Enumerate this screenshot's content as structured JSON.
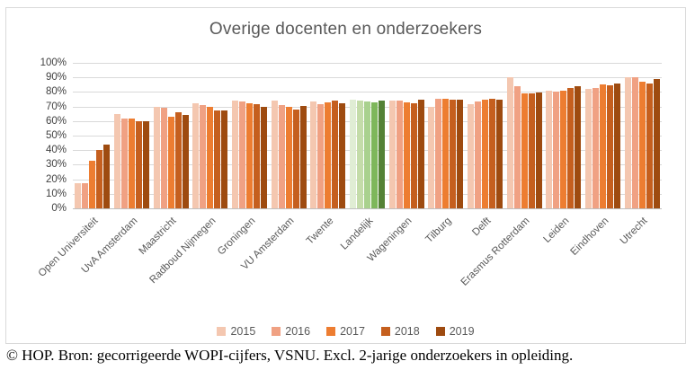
{
  "footer": {
    "text": "© HOP. Bron: gecorrigeerde WOPI-cijfers, VSNU. Excl. 2-jarige onderzoekers in opleiding."
  },
  "style": {
    "frame_border_color": "#D9D9D9",
    "title_color": "#595959",
    "gridline_color": "#D9D9D9",
    "axis_line_color": "#BFBFBF",
    "ytick_color": "#404040",
    "xtick_color": "#595959"
  },
  "chart_data": {
    "type": "bar",
    "title": "Overige docenten en onderzoekers",
    "xlabel": "",
    "ylabel": "",
    "ylim": [
      0,
      100
    ],
    "ytick_step": 10,
    "ytick_suffix": "%",
    "grid": true,
    "legend_position": "bottom",
    "categories": [
      "Open Universiteit",
      "UvA Amsterdam",
      "Maastricht",
      "Radboud Nijmegen",
      "Groningen",
      "VU Amsterdam",
      "Twente",
      "Landelijk",
      "Wageningen",
      "Tilburg",
      "Delft",
      "Erasmus Rotterdam",
      "Leiden",
      "Eindhoven",
      "Utrecht"
    ],
    "highlight_category": "Landelijk",
    "series": [
      {
        "name": "2015",
        "color": "#F4C7B0",
        "highlight_color": "#E0EDD4",
        "values": [
          17,
          65,
          70,
          72,
          74,
          74,
          73.5,
          75,
          74,
          69.5,
          71.5,
          90,
          81,
          82,
          90
        ]
      },
      {
        "name": "2016",
        "color": "#F0A183",
        "highlight_color": "#C4DCA9",
        "values": [
          17,
          62,
          69,
          71,
          73.5,
          71,
          71.5,
          74,
          74,
          75.5,
          73.5,
          84,
          80.5,
          83,
          90
        ]
      },
      {
        "name": "2017",
        "color": "#ED7D31",
        "highlight_color": "#A9D18E",
        "values": [
          33,
          61.5,
          63,
          69.5,
          72,
          69.5,
          73,
          73.5,
          73,
          75.5,
          75,
          79,
          81,
          85,
          87
        ]
      },
      {
        "name": "2018",
        "color": "#C55F1E",
        "highlight_color": "#7EB75B",
        "values": [
          40,
          60,
          66,
          67,
          71.5,
          68,
          74,
          73,
          72,
          75,
          75.5,
          79,
          82.5,
          84.5,
          86
        ]
      },
      {
        "name": "2019",
        "color": "#9E4B10",
        "highlight_color": "#548235",
        "values": [
          44,
          60,
          64,
          67,
          70,
          70.5,
          72,
          74,
          74.5,
          75,
          75,
          79.5,
          84,
          86,
          89
        ]
      }
    ]
  }
}
